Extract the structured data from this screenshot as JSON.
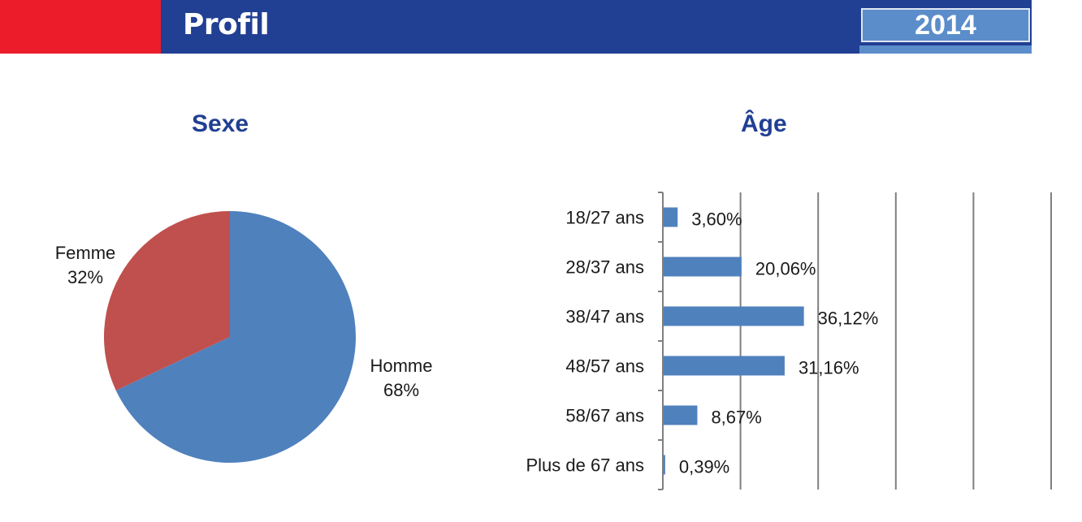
{
  "header": {
    "title": "Profil",
    "year": "2014",
    "colors": {
      "red": "#ec1c2b",
      "navy": "#213f93",
      "light_blue": "#5b8dcb"
    }
  },
  "chart_data": [
    {
      "type": "pie",
      "title": "Sexe",
      "slices": [
        {
          "label": "Homme",
          "value": 68,
          "display": "68%",
          "color": "#4f81bd"
        },
        {
          "label": "Femme",
          "value": 32,
          "display": "32%",
          "color": "#c0504d"
        }
      ]
    },
    {
      "type": "bar",
      "orientation": "horizontal",
      "title": "Âge",
      "categories": [
        "18/27 ans",
        "28/37 ans",
        "38/47 ans",
        "48/57 ans",
        "58/67 ans",
        "Plus de 67 ans"
      ],
      "values": [
        3.6,
        20.06,
        36.12,
        31.16,
        8.67,
        0.39
      ],
      "value_labels": [
        "3,60%",
        "20,06%",
        "36,12%",
        "31,16%",
        "8,67%",
        "0,39%"
      ],
      "xlim": [
        0,
        100
      ],
      "grid": true,
      "bar_color": "#4f81bd"
    }
  ]
}
